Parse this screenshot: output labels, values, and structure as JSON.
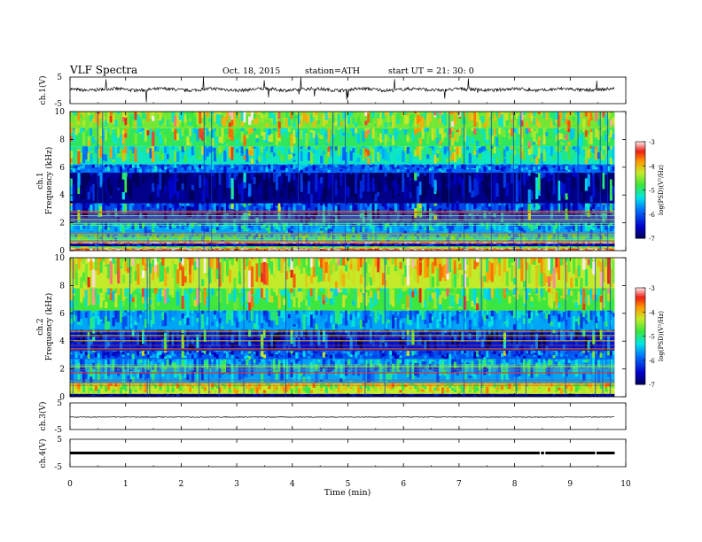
{
  "header": {
    "title": "VLF  Spectra",
    "date": "Oct. 18, 2015",
    "station": "station=ATH",
    "start": "start  UT  =   21: 30: 0"
  },
  "chart_data": [
    {
      "type": "line",
      "panel": "ch1",
      "ylabel": "ch.1(V)",
      "ylim": [
        -5,
        5
      ],
      "yticks": [
        "5",
        "-5"
      ],
      "baseline": 0.3,
      "color": "#000000"
    },
    {
      "type": "heatmap",
      "panel": "spec1",
      "ylabel": "ch.1",
      "ylabel2": "Frequency  (kHz)",
      "ylim": [
        0,
        10
      ],
      "yticks": [
        "0",
        "2",
        "4",
        "6",
        "8",
        "10"
      ],
      "bands": [
        {
          "f0": 0.0,
          "f1": 0.15,
          "v": -3.4
        },
        {
          "f0": 0.15,
          "f1": 0.3,
          "v": -4.6
        },
        {
          "f0": 0.3,
          "f1": 0.5,
          "v": -6.6
        },
        {
          "f0": 0.5,
          "f1": 0.6,
          "v": -3.3
        },
        {
          "f0": 0.6,
          "f1": 1.2,
          "v": -5.2
        },
        {
          "f0": 1.2,
          "f1": 2.0,
          "v": -5.6
        },
        {
          "f0": 2.0,
          "f1": 3.4,
          "v": -6.1
        },
        {
          "f0": 3.4,
          "f1": 5.6,
          "v": -6.8
        },
        {
          "f0": 5.6,
          "f1": 6.2,
          "v": -5.9
        },
        {
          "f0": 6.2,
          "f1": 7.5,
          "v": -5.2
        },
        {
          "f0": 7.5,
          "f1": 8.8,
          "v": -4.9
        },
        {
          "f0": 8.8,
          "f1": 10.0,
          "v": -4.6
        }
      ],
      "colorbar": {
        "ticks": [
          "-3",
          "-4",
          "-5",
          "-6",
          "-7"
        ],
        "label": "log(PSD)(V²/Hz)",
        "range": [
          -7,
          -3
        ]
      }
    },
    {
      "type": "heatmap",
      "panel": "spec2",
      "ylabel": "ch.2",
      "ylabel2": "Frequency  (kHz)",
      "ylim": [
        0,
        10
      ],
      "yticks": [
        "0",
        "2",
        "4",
        "6",
        "8",
        "10"
      ],
      "bands": [
        {
          "f0": 0.0,
          "f1": 0.2,
          "v": -6.9
        },
        {
          "f0": 0.2,
          "f1": 1.0,
          "v": -4.3
        },
        {
          "f0": 1.0,
          "f1": 2.7,
          "v": -5.6
        },
        {
          "f0": 2.7,
          "f1": 3.3,
          "v": -6.0
        },
        {
          "f0": 3.3,
          "f1": 4.8,
          "v": -6.4
        },
        {
          "f0": 4.8,
          "f1": 6.2,
          "v": -5.6
        },
        {
          "f0": 6.2,
          "f1": 7.8,
          "v": -4.8
        },
        {
          "f0": 7.8,
          "f1": 10.0,
          "v": -4.3
        }
      ],
      "colorbar": {
        "ticks": [
          "-3",
          "-4",
          "-5",
          "-6",
          "-7"
        ],
        "label": "log(PSD)(V²/Hz)",
        "range": [
          -7,
          -3
        ]
      }
    },
    {
      "type": "line",
      "panel": "ch3",
      "ylabel": "ch.3(V)",
      "ylim": [
        -5,
        5
      ],
      "yticks": [
        "5",
        "-5"
      ],
      "baseline": -0.3,
      "color": "#000000"
    },
    {
      "type": "line",
      "panel": "ch4",
      "ylabel": "ch.4(V)",
      "ylim": [
        -5,
        5
      ],
      "yticks": [
        "5",
        "-5"
      ],
      "baseline": 0.0,
      "color": "#000000"
    }
  ],
  "xaxis": {
    "label": "Time  (min)",
    "xlim": [
      0,
      10
    ],
    "ticks": [
      "0",
      "1",
      "2",
      "3",
      "4",
      "5",
      "6",
      "7",
      "8",
      "9",
      "10"
    ],
    "data_end": 9.8
  }
}
